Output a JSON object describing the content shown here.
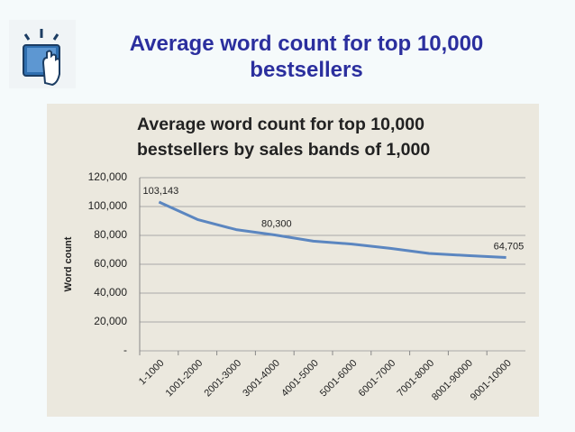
{
  "slide_title": "Average word count for top 10,000 bestsellers",
  "chart_data": {
    "type": "line",
    "title": "Average word count for top 10,000 bestsellers by sales bands of 1,000",
    "y_label": "Word count",
    "categories": [
      "1-1000",
      "1001-2000",
      "2001-3000",
      "3001-4000",
      "4001-5000",
      "5001-6000",
      "6001-7000",
      "7001-8000",
      "8001-90000",
      "9001-10000"
    ],
    "values": [
      103143,
      91000,
      84000,
      80300,
      76000,
      74000,
      71000,
      67500,
      66000,
      64705
    ],
    "value_labels": [
      "103,143",
      null,
      null,
      "80,300",
      null,
      null,
      null,
      null,
      null,
      "64,705"
    ],
    "color": "#5b86c0",
    "ylim": [
      0,
      120000
    ],
    "yticks": [
      {
        "value": 0,
        "label": "-"
      },
      {
        "value": 20000,
        "label": "20,000"
      },
      {
        "value": 40000,
        "label": "40,000"
      },
      {
        "value": 60000,
        "label": "60,000"
      },
      {
        "value": 80000,
        "label": "80,000"
      },
      {
        "value": 100000,
        "label": "100,000"
      },
      {
        "value": 120000,
        "label": "120,000"
      }
    ],
    "grid": true
  }
}
